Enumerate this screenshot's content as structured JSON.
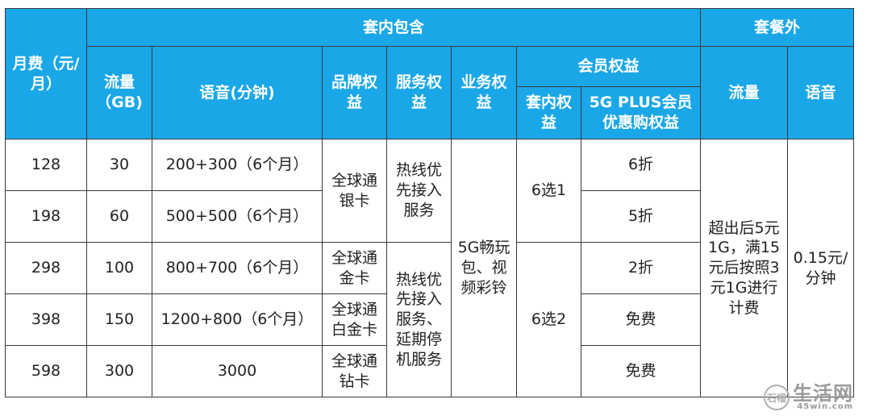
{
  "headers": {
    "monthly_fee": "月费（元/月）",
    "included": "套内包含",
    "extra": "套餐外",
    "data_gb": "流量（GB)",
    "voice_min": "语音(分钟)",
    "brand_rights": "品牌权益",
    "service_rights": "服务权益",
    "business_rights": "业务权益",
    "member_rights": "会员权益",
    "in_plan_rights": "套内权益",
    "plus_discount": "5G PLUS会员优惠购权益",
    "extra_data": "流量",
    "extra_voice": "语音"
  },
  "rows": [
    {
      "fee": "128",
      "data": "30",
      "voice": "200+300（6个月）",
      "discount": "6折"
    },
    {
      "fee": "198",
      "data": "60",
      "voice": "500+500（6个月）",
      "discount": "5折"
    },
    {
      "fee": "298",
      "data": "100",
      "voice": "800+700（6个月）",
      "discount": "2折"
    },
    {
      "fee": "398",
      "data": "150",
      "voice": "1200+800（6个月）",
      "discount": "免费"
    },
    {
      "fee": "598",
      "data": "300",
      "voice": "3000",
      "discount": "免费"
    }
  ],
  "brand": {
    "silver": "全球通银卡",
    "gold": "全球通金卡",
    "platinum": "全球通白金卡",
    "diamond": "全球通钻卡"
  },
  "service": {
    "basic": "热线优先接入服务",
    "advanced": "热线优先接入服务、延期停机服务"
  },
  "business": "5G畅玩包、视频彩铃",
  "member_choice": {
    "group1": "6选1",
    "group2": "6选2"
  },
  "extra_data_rule": "超出后5元1G，满15元后按照3元1G进行计费",
  "extra_voice_rule": "0.15元/分钟",
  "watermark": {
    "icon": "石榴",
    "main": "生活网",
    "sub": "45win.com"
  }
}
